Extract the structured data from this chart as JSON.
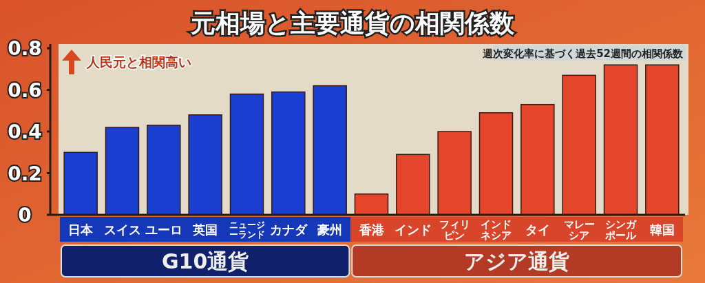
{
  "chart_data": {
    "type": "bar",
    "title": "元相場と主要通貨の相関係数",
    "categories": [
      "日本",
      "スイス",
      "ユーロ",
      "英国",
      "ニュージーランド",
      "カナダ",
      "豪州",
      "香港",
      "インド",
      "フィリピン",
      "インドネシア",
      "タイ",
      "マレーシア",
      "シンガポール",
      "韓国"
    ],
    "series": [
      {
        "name": "G10通貨",
        "color": "#1a3fd0",
        "values": [
          0.3,
          0.42,
          0.43,
          0.48,
          0.58,
          0.59,
          0.62,
          null,
          null,
          null,
          null,
          null,
          null,
          null,
          null
        ]
      },
      {
        "name": "アジア通貨",
        "color": "#e5452a",
        "values": [
          null,
          null,
          null,
          null,
          null,
          null,
          null,
          0.1,
          0.29,
          0.4,
          0.49,
          0.53,
          0.67,
          0.72,
          0.72
        ]
      }
    ],
    "ylim": [
      0,
      0.82
    ],
    "yticks": [
      0,
      0.2,
      0.4,
      0.6,
      0.8
    ],
    "annotations": [
      "人民元と相関高い",
      "週次変化率に基づく過去52週間の相関係数"
    ]
  }
}
